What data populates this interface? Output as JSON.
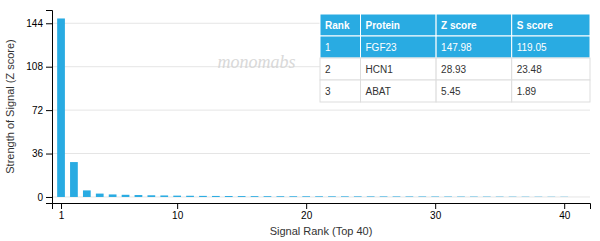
{
  "chart_data": {
    "type": "bar",
    "x": [
      1,
      2,
      3,
      4,
      5,
      6,
      7,
      8,
      9,
      10,
      11,
      12,
      13,
      14,
      15,
      16,
      17,
      18,
      19,
      20,
      21,
      22,
      23,
      24,
      25,
      26,
      27,
      28,
      29,
      30,
      31,
      32,
      33,
      34,
      35,
      36,
      37,
      38,
      39,
      40
    ],
    "values": [
      147.98,
      28.93,
      5.45,
      2.8,
      2.1,
      1.8,
      1.6,
      1.4,
      1.25,
      1.1,
      1.0,
      0.9,
      0.85,
      0.8,
      0.75,
      0.7,
      0.65,
      0.62,
      0.6,
      0.58,
      0.56,
      0.54,
      0.52,
      0.5,
      0.48,
      0.46,
      0.44,
      0.42,
      0.4,
      0.38,
      0.36,
      0.34,
      0.32,
      0.3,
      0.28,
      0.26,
      0.24,
      0.22,
      0.2,
      0.18
    ],
    "color": "#29ABE2",
    "xlabel": "Signal Rank (Top 40)",
    "ylabel": "Strength of Signal (Z score)",
    "xlim": [
      0.3,
      42
    ],
    "ylim": [
      -5,
      155
    ],
    "xticks": [
      1,
      10,
      20,
      30,
      40
    ],
    "yticks": [
      0,
      36,
      72,
      108,
      144
    ],
    "grid": true,
    "annotations": [
      {
        "text": "monomabs"
      }
    ],
    "table": [
      [
        "Rank",
        "Protein",
        "Z score",
        "S score"
      ],
      [
        "1",
        "FGF23",
        "147.98",
        "119.05"
      ],
      [
        "2",
        "HCN1",
        "28.93",
        "23.48"
      ],
      [
        "3",
        "ABAT",
        "5.45",
        "1.89"
      ]
    ]
  }
}
